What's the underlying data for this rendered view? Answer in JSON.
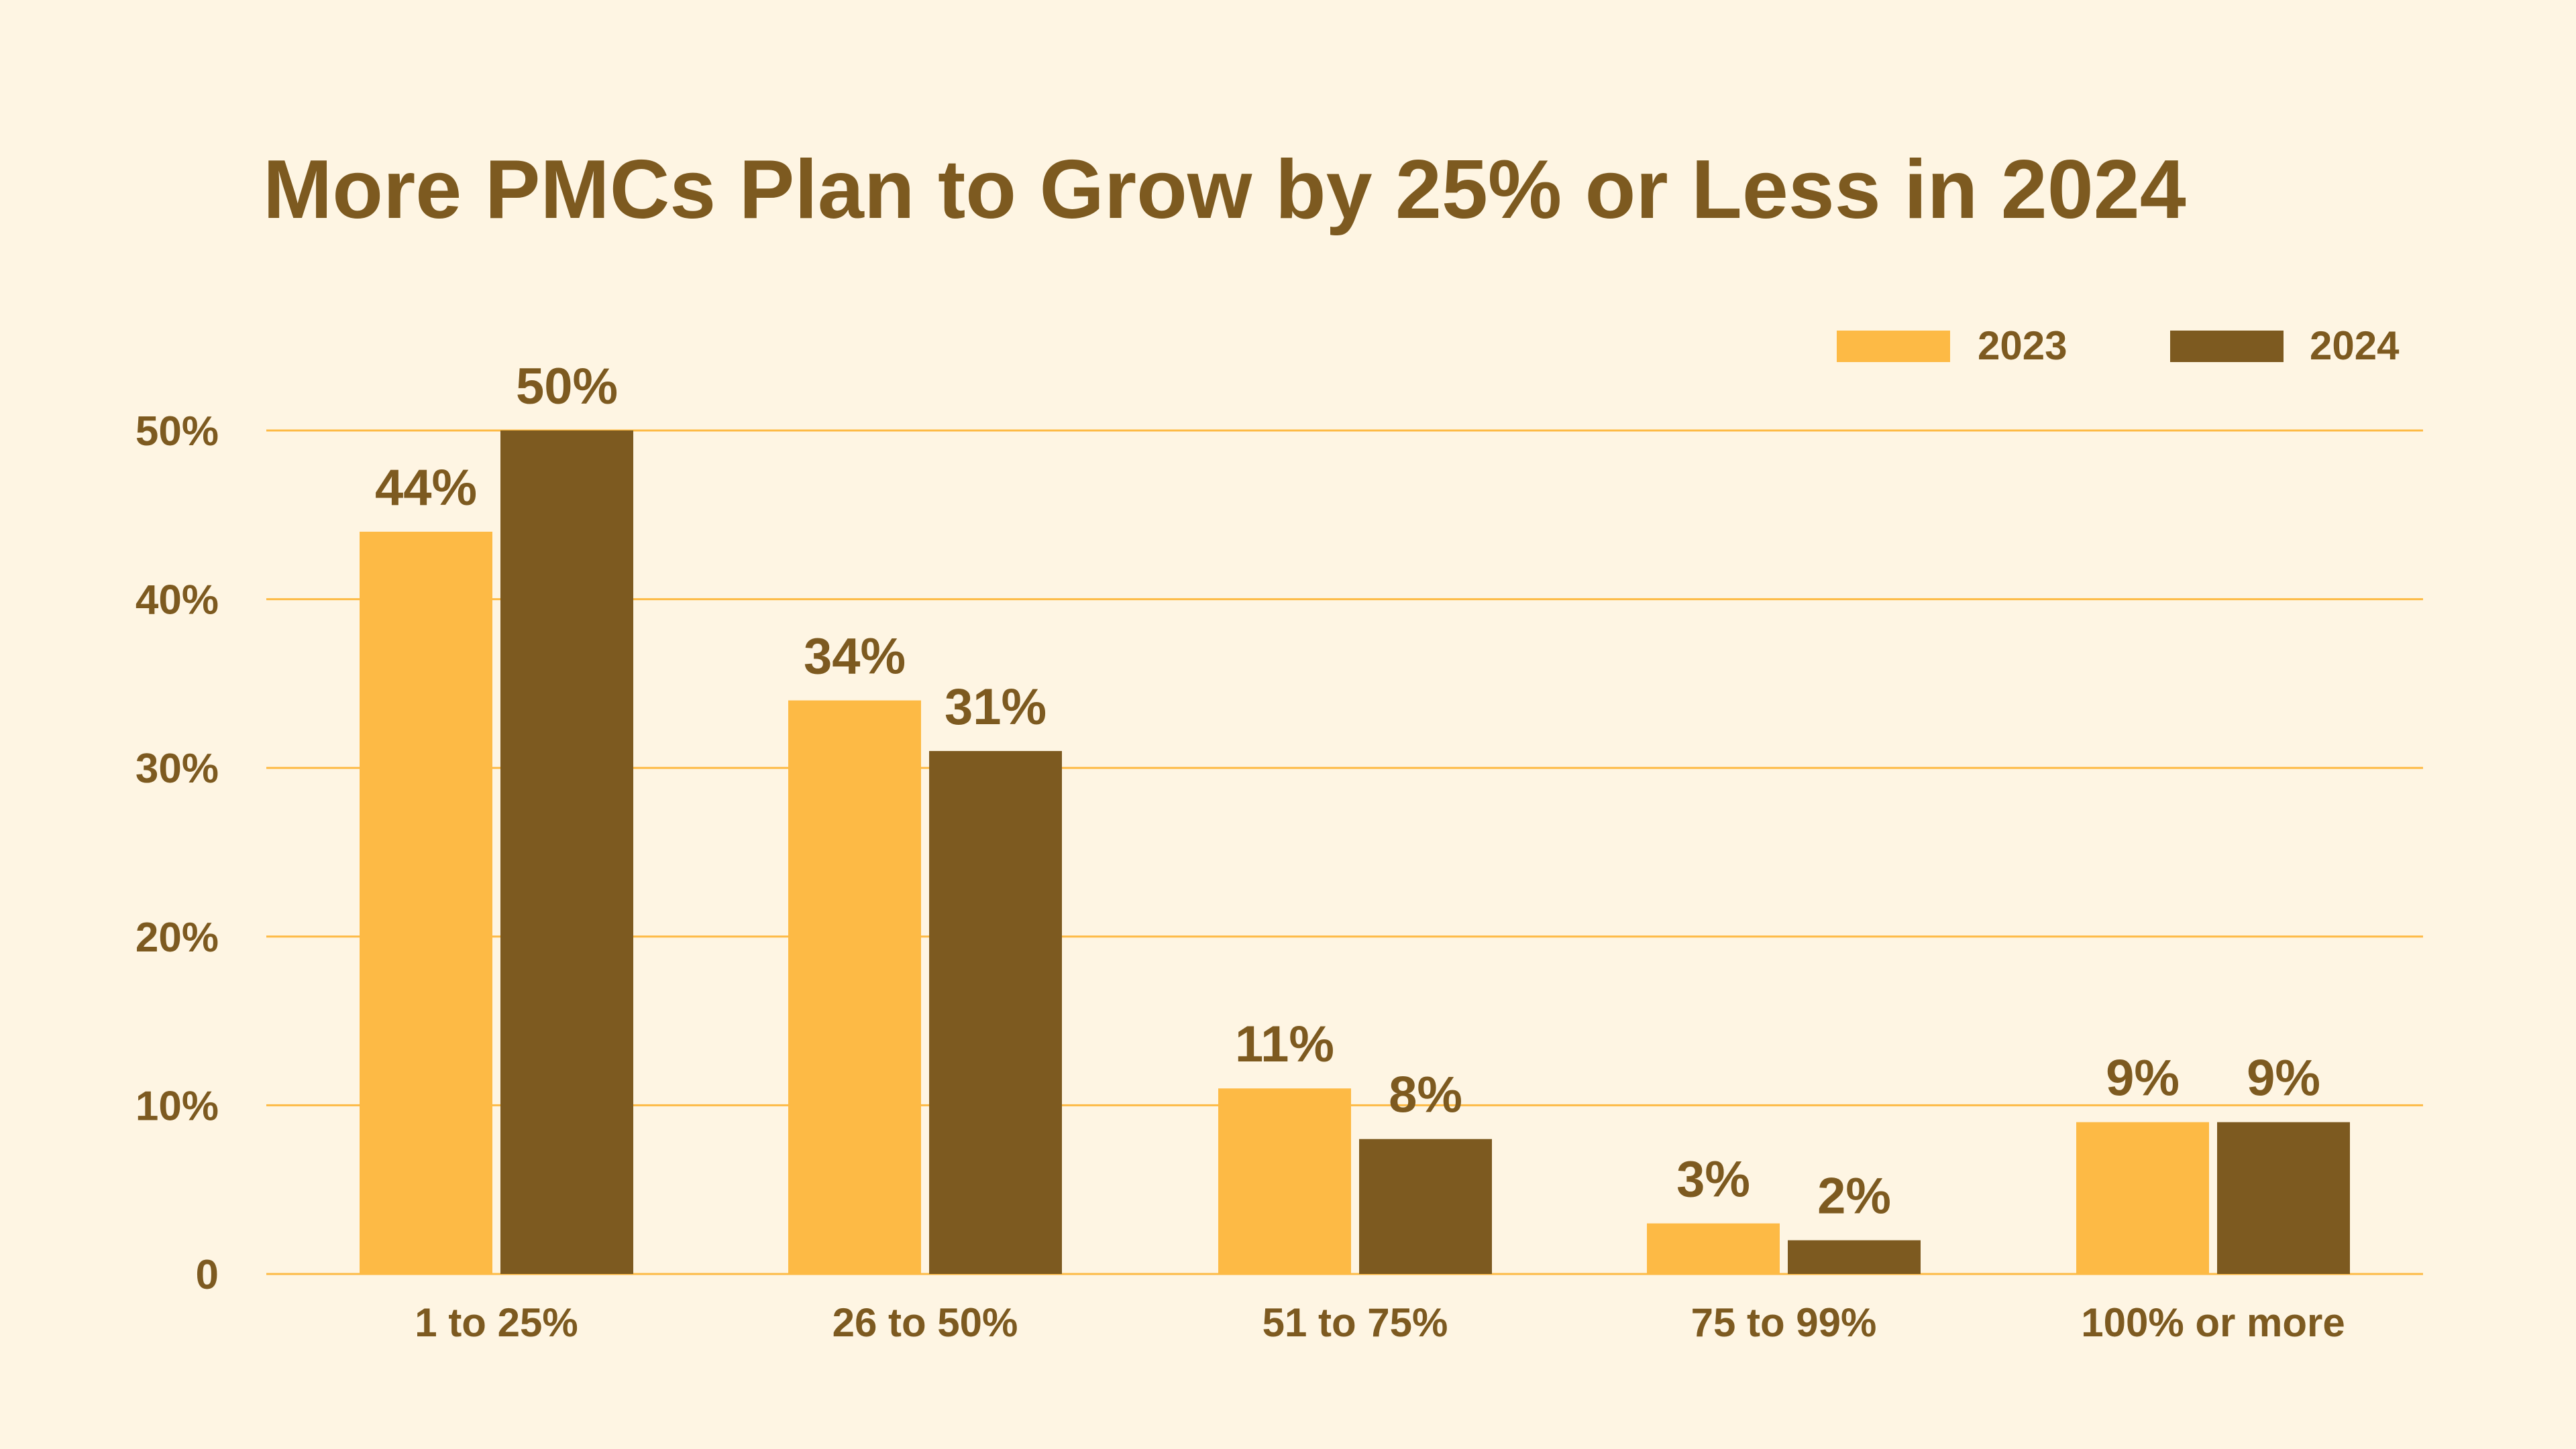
{
  "chart_data": {
    "type": "bar",
    "title": "More PMCs Plan to Grow by 25% or Less in 2024",
    "xlabel": "",
    "ylabel": "",
    "categories": [
      "1 to 25%",
      "26 to 50%",
      "51 to 75%",
      "75 to 99%",
      "100% or more"
    ],
    "series": [
      {
        "name": "2023",
        "values": [
          44,
          34,
          11,
          3,
          9
        ],
        "labels": [
          "44%",
          "34%",
          "11%",
          "3%",
          "9%"
        ],
        "color": "#FDBA45"
      },
      {
        "name": "2024",
        "values": [
          50,
          31,
          8,
          2,
          9
        ],
        "labels": [
          "50%",
          "31%",
          "8%",
          "2%",
          "9%"
        ],
        "color": "#7D5A20"
      }
    ],
    "ylim": [
      0,
      50
    ],
    "yticks": [
      0,
      10,
      20,
      30,
      40,
      50
    ],
    "ytick_labels": [
      "0",
      "10%",
      "20%",
      "30%",
      "40%",
      "50%"
    ],
    "grid": true,
    "legend_position": "top-right",
    "colors": {
      "background": "#FEF5E3",
      "text": "#7D5A20",
      "grid": "#FDBA45"
    }
  }
}
